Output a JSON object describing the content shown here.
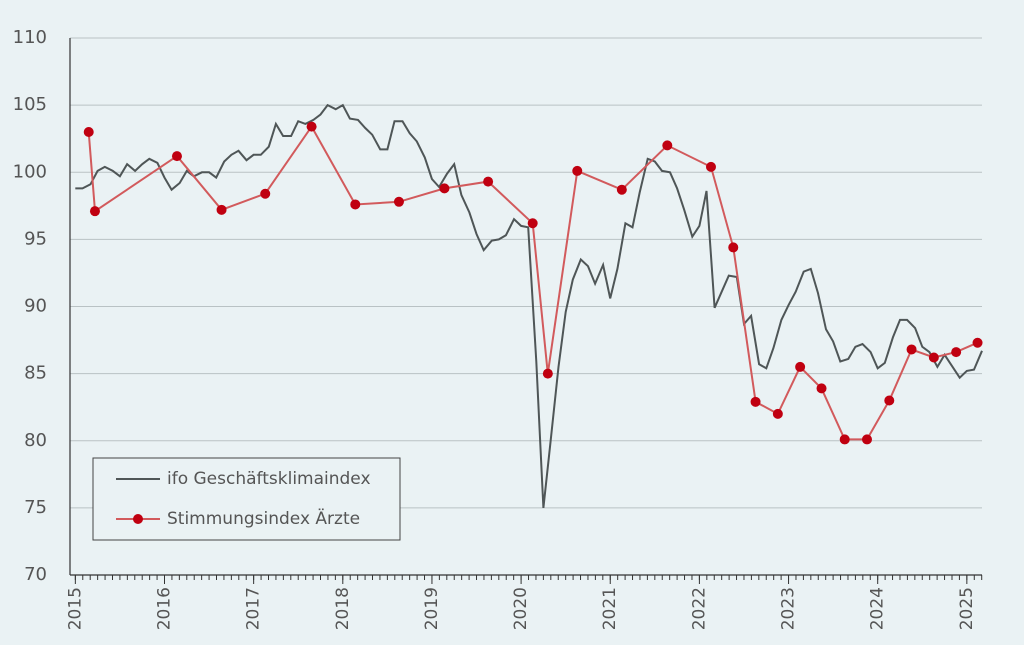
{
  "chart_data": {
    "type": "line",
    "xlim": [
      2014.94,
      2025.17
    ],
    "xticks": [
      2015,
      2016,
      2017,
      2018,
      2019,
      2020,
      2021,
      2022,
      2023,
      2024,
      2025
    ],
    "ylim": [
      70,
      110
    ],
    "yticks": [
      70,
      75,
      80,
      85,
      90,
      95,
      100,
      105,
      110
    ],
    "grid": true,
    "legend": "lower left",
    "series": [
      {
        "name": "ifo Geschäftsklimaindex",
        "color": "#4f5657",
        "markers": false,
        "x": [
          2015.0,
          2015.08,
          2015.17,
          2015.25,
          2015.33,
          2015.42,
          2015.5,
          2015.58,
          2015.67,
          2015.75,
          2015.83,
          2015.92,
          2016.0,
          2016.08,
          2016.17,
          2016.25,
          2016.33,
          2016.42,
          2016.5,
          2016.58,
          2016.67,
          2016.75,
          2016.83,
          2016.92,
          2017.0,
          2017.08,
          2017.17,
          2017.25,
          2017.33,
          2017.42,
          2017.5,
          2017.58,
          2017.67,
          2017.75,
          2017.83,
          2017.92,
          2018.0,
          2018.08,
          2018.17,
          2018.25,
          2018.33,
          2018.42,
          2018.5,
          2018.58,
          2018.67,
          2018.75,
          2018.83,
          2018.92,
          2019.0,
          2019.08,
          2019.17,
          2019.25,
          2019.33,
          2019.42,
          2019.5,
          2019.58,
          2019.67,
          2019.75,
          2019.83,
          2019.92,
          2020.0,
          2020.08,
          2020.17,
          2020.25,
          2020.33,
          2020.42,
          2020.5,
          2020.58,
          2020.67,
          2020.75,
          2020.83,
          2020.92,
          2021.0,
          2021.08,
          2021.17,
          2021.25,
          2021.33,
          2021.42,
          2021.5,
          2021.58,
          2021.67,
          2021.75,
          2021.83,
          2021.92,
          2022.0,
          2022.08,
          2022.17,
          2022.25,
          2022.33,
          2022.42,
          2022.5,
          2022.58,
          2022.67,
          2022.75,
          2022.83,
          2022.92,
          2023.0,
          2023.08,
          2023.17,
          2023.25,
          2023.33,
          2023.42,
          2023.5,
          2023.58,
          2023.67,
          2023.75,
          2023.83,
          2023.92,
          2024.0,
          2024.08,
          2024.17,
          2024.25,
          2024.33,
          2024.42,
          2024.5,
          2024.58,
          2024.67,
          2024.75,
          2024.83,
          2024.92,
          2025.0,
          2025.08,
          2025.17
        ],
        "values": [
          98.8,
          98.8,
          99.1,
          100.1,
          100.4,
          100.1,
          99.7,
          100.6,
          100.1,
          100.6,
          101.0,
          100.7,
          99.6,
          98.7,
          99.2,
          100.1,
          99.7,
          100.0,
          100.0,
          99.6,
          100.8,
          101.3,
          101.6,
          100.9,
          101.3,
          101.3,
          101.9,
          103.6,
          102.7,
          102.7,
          103.8,
          103.6,
          103.9,
          104.3,
          105.0,
          104.7,
          105.0,
          104.0,
          103.9,
          103.3,
          102.8,
          101.7,
          101.7,
          103.8,
          103.8,
          102.9,
          102.3,
          101.1,
          99.5,
          98.9,
          99.9,
          100.6,
          98.3,
          97.0,
          95.4,
          94.2,
          94.9,
          95.0,
          95.3,
          96.5,
          96.0,
          95.9,
          85.9,
          75.0,
          79.9,
          85.5,
          89.6,
          92.0,
          93.5,
          93.0,
          91.7,
          93.1,
          90.6,
          92.8,
          96.2,
          95.9,
          98.5,
          101.0,
          100.8,
          100.1,
          100.0,
          98.8,
          97.2,
          95.2,
          96.0,
          98.6,
          89.9,
          91.1,
          92.3,
          92.2,
          88.7,
          89.3,
          85.7,
          85.4,
          86.9,
          89.0,
          90.1,
          91.1,
          92.6,
          92.8,
          91.0,
          88.3,
          87.4,
          85.9,
          86.1,
          87.0,
          87.2,
          86.6,
          85.4,
          85.8,
          87.7,
          89.0,
          89.0,
          88.4,
          87.0,
          86.6,
          85.5,
          86.4,
          85.6,
          84.7,
          85.2,
          85.3,
          86.7
        ]
      },
      {
        "name": "Stimmungsindex Ärzte",
        "color": "#d25a5c",
        "marker_color": "#c00010",
        "markers": true,
        "x": [
          2015.15,
          2015.22,
          2016.14,
          2016.64,
          2017.13,
          2017.65,
          2018.14,
          2018.63,
          2019.14,
          2019.63,
          2020.13,
          2020.3,
          2020.63,
          2021.13,
          2021.64,
          2022.13,
          2022.38,
          2022.63,
          2022.88,
          2023.13,
          2023.37,
          2023.63,
          2023.88,
          2024.13,
          2024.38,
          2024.63,
          2024.88,
          2025.12
        ],
        "values": [
          103.0,
          97.1,
          101.2,
          97.2,
          98.4,
          103.4,
          97.6,
          97.8,
          98.8,
          99.3,
          96.2,
          85.0,
          100.1,
          98.7,
          102.0,
          100.4,
          94.4,
          82.9,
          82.0,
          85.5,
          83.9,
          80.1,
          80.1,
          83.0,
          86.8,
          86.2,
          86.6,
          87.3
        ]
      }
    ]
  }
}
